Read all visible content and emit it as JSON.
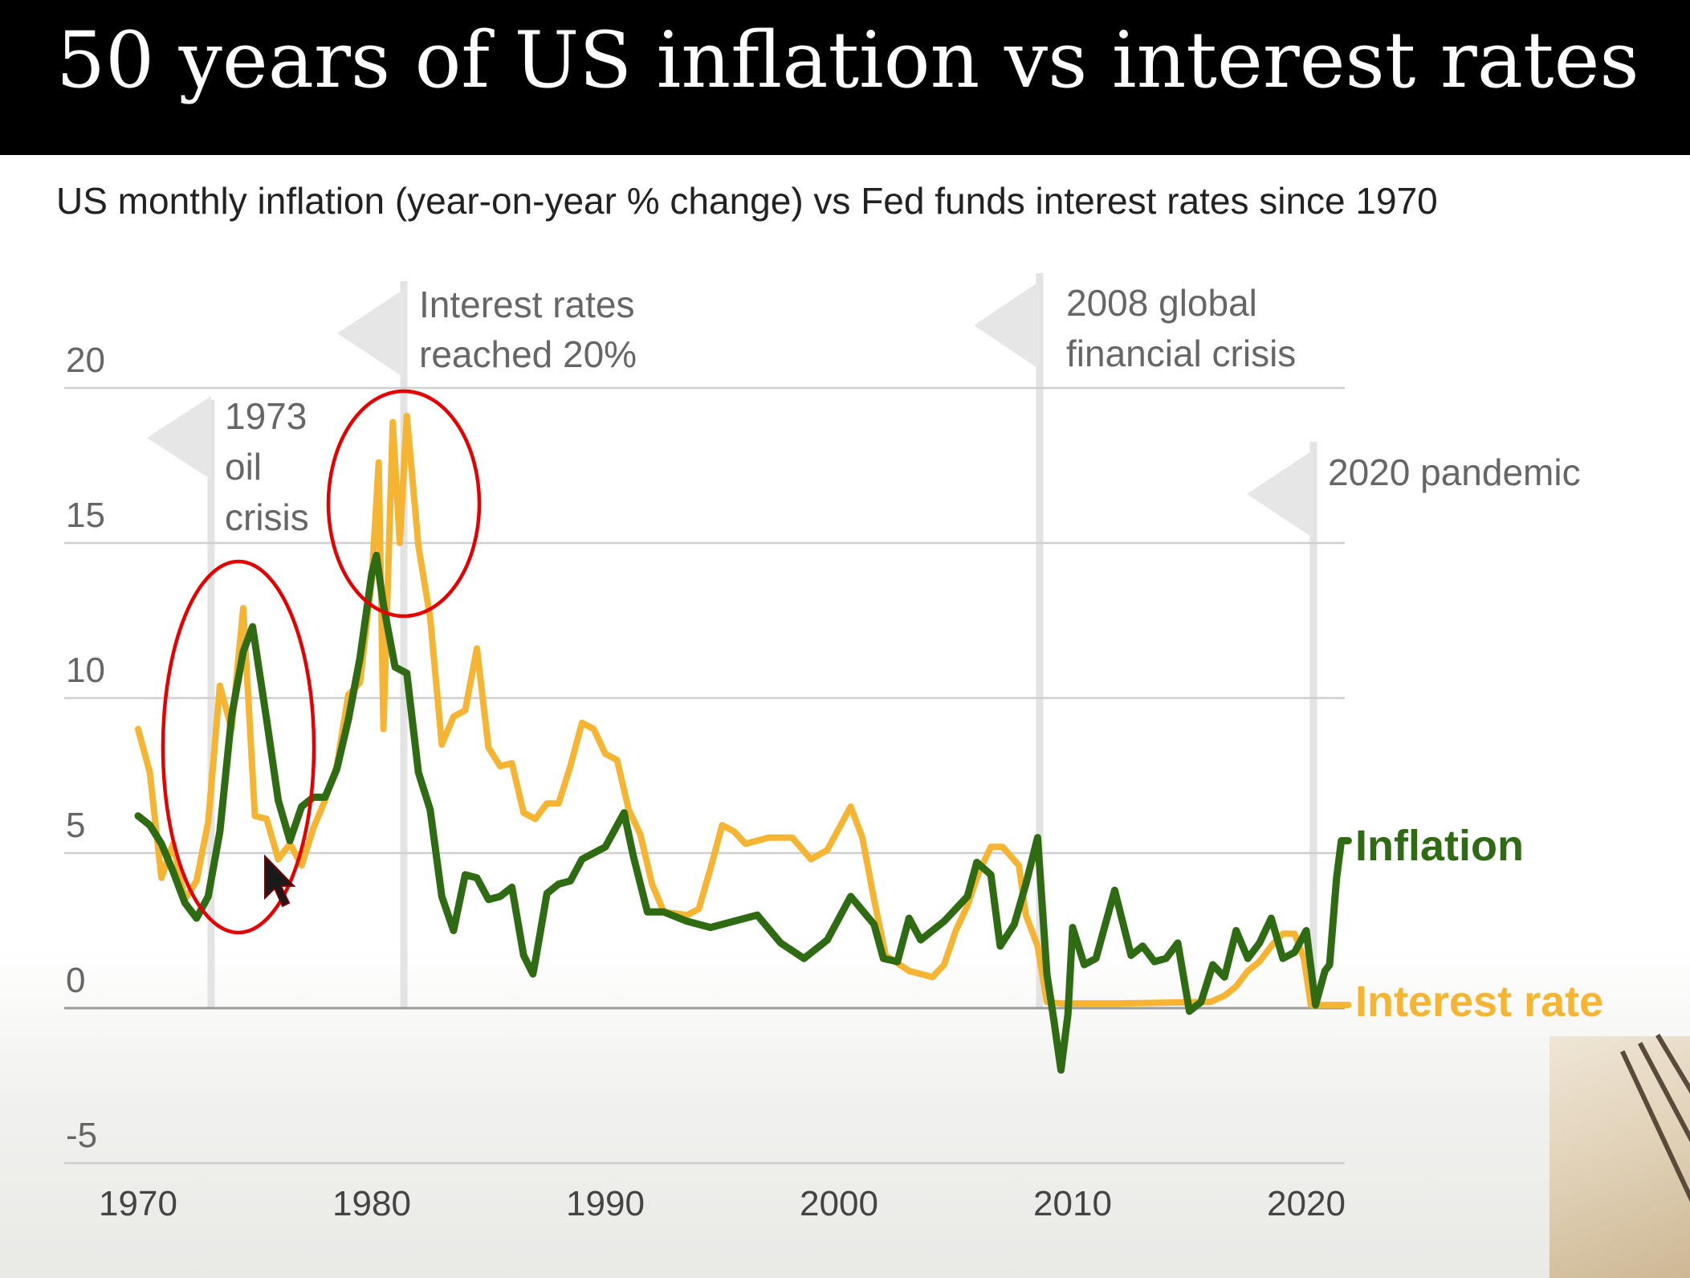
{
  "header": {
    "title": "50 years of US inflation vs interest rates"
  },
  "chart_data": {
    "type": "line",
    "subtitle": "US monthly inflation (year-on-year % change) vs Fed funds interest rates since 1970",
    "xlim": [
      1967.0,
      2022.3
    ],
    "ylim": [
      -5,
      20
    ],
    "y_ticks": [
      "20",
      "15",
      "10",
      "5",
      "0",
      "-5"
    ],
    "y_tick_values": [
      20,
      15,
      10,
      5,
      0,
      -5
    ],
    "x_ticks": [
      "1970",
      "1980",
      "1990",
      "2000",
      "2010",
      "2020"
    ],
    "x_tick_values": [
      1970,
      1980,
      1990,
      2000,
      2010,
      2020
    ],
    "grid": true,
    "series": [
      {
        "name": "Inflation",
        "label": "Inflation",
        "color": "#2e6b13",
        "points": [
          [
            1970.0,
            6.2
          ],
          [
            1970.5,
            5.9
          ],
          [
            1971.0,
            5.3
          ],
          [
            1971.5,
            4.4
          ],
          [
            1972.0,
            3.4
          ],
          [
            1972.5,
            2.9
          ],
          [
            1973.0,
            3.6
          ],
          [
            1973.5,
            5.7
          ],
          [
            1974.0,
            9.4
          ],
          [
            1974.5,
            11.5
          ],
          [
            1974.9,
            12.3
          ],
          [
            1975.5,
            9.3
          ],
          [
            1976.0,
            6.7
          ],
          [
            1976.5,
            5.4
          ],
          [
            1977.0,
            6.5
          ],
          [
            1977.5,
            6.8
          ],
          [
            1978.0,
            6.8
          ],
          [
            1978.5,
            7.7
          ],
          [
            1979.0,
            9.3
          ],
          [
            1979.5,
            11.3
          ],
          [
            1980.0,
            14.0
          ],
          [
            1980.2,
            14.6
          ],
          [
            1980.5,
            13.0
          ],
          [
            1981.0,
            11.0
          ],
          [
            1981.5,
            10.8
          ],
          [
            1982.0,
            7.6
          ],
          [
            1982.5,
            6.4
          ],
          [
            1983.0,
            3.6
          ],
          [
            1983.5,
            2.5
          ],
          [
            1984.0,
            4.3
          ],
          [
            1984.5,
            4.2
          ],
          [
            1985.0,
            3.5
          ],
          [
            1985.5,
            3.6
          ],
          [
            1986.0,
            3.9
          ],
          [
            1986.5,
            1.7
          ],
          [
            1986.9,
            1.1
          ],
          [
            1987.0,
            1.5
          ],
          [
            1987.5,
            3.7
          ],
          [
            1988.0,
            4.0
          ],
          [
            1988.5,
            4.1
          ],
          [
            1989.0,
            4.8
          ],
          [
            1989.5,
            5.0
          ],
          [
            1990.0,
            5.2
          ],
          [
            1990.8,
            6.3
          ],
          [
            1991.2,
            4.9
          ],
          [
            1991.8,
            3.1
          ],
          [
            1992.5,
            3.1
          ],
          [
            1993.5,
            2.8
          ],
          [
            1994.5,
            2.6
          ],
          [
            1995.5,
            2.8
          ],
          [
            1996.5,
            3.0
          ],
          [
            1997.5,
            2.1
          ],
          [
            1998.5,
            1.6
          ],
          [
            1999.5,
            2.2
          ],
          [
            2000.5,
            3.6
          ],
          [
            2001.5,
            2.7
          ],
          [
            2001.9,
            1.6
          ],
          [
            2002.5,
            1.5
          ],
          [
            2003.0,
            2.9
          ],
          [
            2003.5,
            2.2
          ],
          [
            2004.5,
            2.8
          ],
          [
            2005.5,
            3.6
          ],
          [
            2005.9,
            4.7
          ],
          [
            2006.5,
            4.3
          ],
          [
            2006.9,
            2.0
          ],
          [
            2007.5,
            2.7
          ],
          [
            2008.0,
            4.0
          ],
          [
            2008.5,
            5.5
          ],
          [
            2008.9,
            1.1
          ],
          [
            2009.2,
            -0.4
          ],
          [
            2009.5,
            -2.0
          ],
          [
            2009.8,
            -0.2
          ],
          [
            2010.0,
            2.6
          ],
          [
            2010.5,
            1.4
          ],
          [
            2011.0,
            1.6
          ],
          [
            2011.8,
            3.8
          ],
          [
            2012.5,
            1.7
          ],
          [
            2013.0,
            2.0
          ],
          [
            2013.5,
            1.5
          ],
          [
            2014.0,
            1.6
          ],
          [
            2014.5,
            2.1
          ],
          [
            2015.0,
            -0.1
          ],
          [
            2015.5,
            0.2
          ],
          [
            2016.0,
            1.4
          ],
          [
            2016.5,
            1.0
          ],
          [
            2017.0,
            2.5
          ],
          [
            2017.5,
            1.6
          ],
          [
            2018.0,
            2.1
          ],
          [
            2018.5,
            2.9
          ],
          [
            2019.0,
            1.6
          ],
          [
            2019.5,
            1.8
          ],
          [
            2020.0,
            2.5
          ],
          [
            2020.4,
            0.1
          ],
          [
            2020.8,
            1.2
          ],
          [
            2021.0,
            1.4
          ],
          [
            2021.3,
            4.2
          ],
          [
            2021.5,
            5.4
          ],
          [
            2021.8,
            5.4
          ]
        ]
      },
      {
        "name": "Interest rate",
        "label": "Interest rate",
        "color": "#f5b533",
        "points": [
          [
            1970.0,
            9.0
          ],
          [
            1970.5,
            7.6
          ],
          [
            1971.0,
            4.2
          ],
          [
            1971.5,
            5.3
          ],
          [
            1972.0,
            3.5
          ],
          [
            1972.5,
            4.1
          ],
          [
            1973.0,
            6.0
          ],
          [
            1973.5,
            10.4
          ],
          [
            1974.0,
            9.0
          ],
          [
            1974.5,
            12.9
          ],
          [
            1975.0,
            6.2
          ],
          [
            1975.5,
            6.1
          ],
          [
            1976.0,
            4.8
          ],
          [
            1976.5,
            5.3
          ],
          [
            1977.0,
            4.6
          ],
          [
            1977.5,
            5.8
          ],
          [
            1978.0,
            6.7
          ],
          [
            1978.5,
            7.8
          ],
          [
            1979.0,
            10.1
          ],
          [
            1979.5,
            10.5
          ],
          [
            1980.0,
            13.8
          ],
          [
            1980.3,
            17.6
          ],
          [
            1980.5,
            9.0
          ],
          [
            1980.9,
            18.9
          ],
          [
            1981.2,
            15.0
          ],
          [
            1981.5,
            19.1
          ],
          [
            1982.0,
            14.9
          ],
          [
            1982.5,
            12.6
          ],
          [
            1983.0,
            8.5
          ],
          [
            1983.5,
            9.4
          ],
          [
            1984.0,
            9.6
          ],
          [
            1984.5,
            11.6
          ],
          [
            1985.0,
            8.4
          ],
          [
            1985.5,
            7.8
          ],
          [
            1986.0,
            7.9
          ],
          [
            1986.5,
            6.3
          ],
          [
            1987.0,
            6.1
          ],
          [
            1987.5,
            6.6
          ],
          [
            1988.0,
            6.6
          ],
          [
            1988.5,
            7.8
          ],
          [
            1989.0,
            9.2
          ],
          [
            1989.5,
            9.0
          ],
          [
            1990.0,
            8.2
          ],
          [
            1990.5,
            8.0
          ],
          [
            1991.0,
            6.4
          ],
          [
            1991.5,
            5.6
          ],
          [
            1992.0,
            4.0
          ],
          [
            1992.5,
            3.1
          ],
          [
            1993.5,
            3.0
          ],
          [
            1994.0,
            3.2
          ],
          [
            1994.5,
            4.5
          ],
          [
            1995.0,
            5.9
          ],
          [
            1995.5,
            5.7
          ],
          [
            1996.0,
            5.3
          ],
          [
            1997.0,
            5.5
          ],
          [
            1998.0,
            5.5
          ],
          [
            1998.8,
            4.8
          ],
          [
            1999.5,
            5.1
          ],
          [
            2000.5,
            6.5
          ],
          [
            2001.0,
            5.5
          ],
          [
            2001.5,
            3.5
          ],
          [
            2002.0,
            1.7
          ],
          [
            2003.0,
            1.2
          ],
          [
            2004.0,
            1.0
          ],
          [
            2004.5,
            1.4
          ],
          [
            2005.0,
            2.5
          ],
          [
            2005.5,
            3.3
          ],
          [
            2006.0,
            4.4
          ],
          [
            2006.5,
            5.2
          ],
          [
            2007.0,
            5.2
          ],
          [
            2007.7,
            4.6
          ],
          [
            2008.0,
            3.0
          ],
          [
            2008.5,
            2.0
          ],
          [
            2008.9,
            0.2
          ],
          [
            2009.5,
            0.15
          ],
          [
            2012.0,
            0.15
          ],
          [
            2015.9,
            0.2
          ],
          [
            2016.5,
            0.4
          ],
          [
            2017.0,
            0.7
          ],
          [
            2017.5,
            1.2
          ],
          [
            2018.0,
            1.5
          ],
          [
            2018.5,
            2.0
          ],
          [
            2019.0,
            2.4
          ],
          [
            2019.5,
            2.4
          ],
          [
            2019.9,
            1.6
          ],
          [
            2020.2,
            0.1
          ],
          [
            2021.8,
            0.1
          ]
        ]
      }
    ],
    "annotations": [
      {
        "year": 1973,
        "lines": [
          "1973",
          "oil",
          "crisis"
        ]
      },
      {
        "year": 1980.5,
        "lines": [
          "Interest rates",
          "reached 20%"
        ]
      },
      {
        "year": 2008.1,
        "lines": [
          "2008 global",
          "financial crisis"
        ]
      },
      {
        "year": 2020.1,
        "lines": [
          "2020 pandemic"
        ]
      }
    ]
  }
}
